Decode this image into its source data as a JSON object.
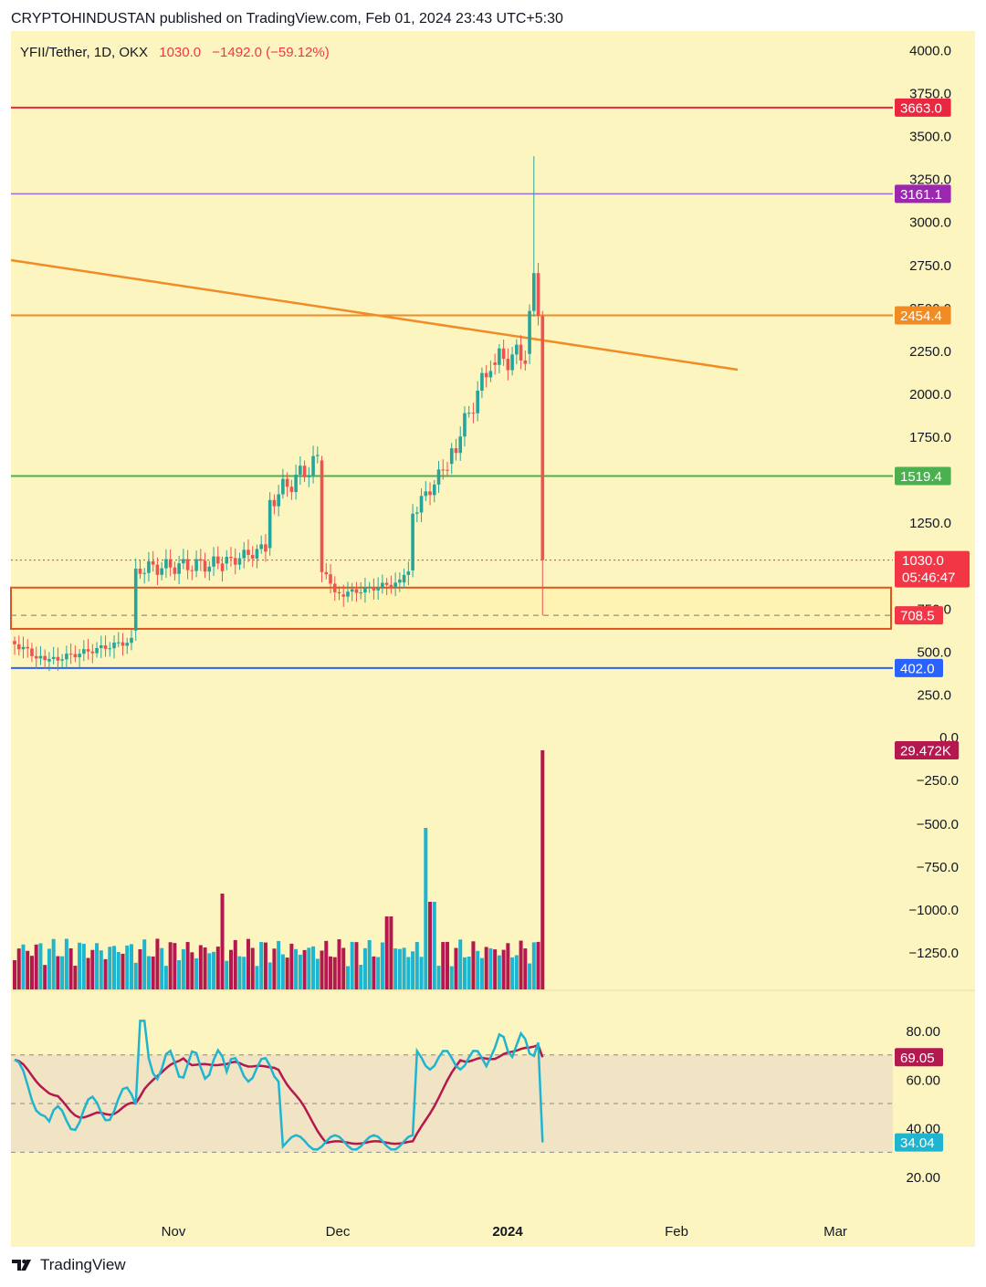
{
  "header": {
    "publisher": "CRYPTOHINDUSTAN published on TradingView.com, Feb 01, 2024 23:43 UTC+5:30"
  },
  "footer": {
    "brand": "TradingView",
    "logo_icon": "tradingview-logo-icon"
  },
  "symbol": {
    "name": "YFII/Tether, 1D, OKX",
    "price": "1030.0",
    "change": "−1492.0 (−59.12%)"
  },
  "colors": {
    "background": "#fcf5c0",
    "up": "#26a69a",
    "down": "#ef5350",
    "rsi_line": "#1fb4cf",
    "rsi_ma": "#b5174f",
    "trend": "#f08c25"
  },
  "chart_data": [
    {
      "type": "candlestick",
      "title": "YFII/Tether, 1D, OKX",
      "x_ticks": [
        "Nov",
        "Dec",
        "2024",
        "Feb",
        "Mar"
      ],
      "y_ticks": [
        "4000.0",
        "3750.0",
        "3500.0",
        "3250.0",
        "3000.0",
        "2750.0",
        "2500.0",
        "2250.0",
        "2000.0",
        "1750.0",
        "1500.0",
        "1250.0",
        "1000.0",
        "750.0",
        "500.0",
        "250.0"
      ],
      "ylim": [
        250,
        4000
      ],
      "price_labels": [
        {
          "value": 3663.0,
          "text": "3663.0",
          "color": "#e9283f"
        },
        {
          "value": 3161.1,
          "text": "3161.1",
          "color": "#9c27b0"
        },
        {
          "value": 2454.4,
          "text": "2454.4",
          "color": "#f08c25"
        },
        {
          "value": 1519.4,
          "text": "1519.4",
          "color": "#4caf50"
        },
        {
          "value": 1030.0,
          "text": "1030.0",
          "countdown": "05:46:47",
          "color": "#f23645"
        },
        {
          "value": 708.5,
          "text": "708.5",
          "color": "#f23645"
        },
        {
          "value": 402.0,
          "text": "402.0",
          "color": "#2962ff"
        }
      ],
      "annotations": [
        "horizontal line 3663.0",
        "horizontal line 3161.1",
        "horizontal line 2454.4",
        "horizontal line 1519.4",
        "horizontal line 402.0",
        "descending trendline",
        "support zone rectangle 630-870"
      ]
    },
    {
      "type": "bar",
      "title": "Volume",
      "last_label": "29.472K",
      "y_ticks": [
        "0.0",
        "−250.0",
        "−500.0",
        "−750.0",
        "−1000.0",
        "−1250.0"
      ]
    },
    {
      "type": "line",
      "title": "RSI",
      "y_ticks": [
        "80.00",
        "60.00",
        "40.00",
        "20.00"
      ],
      "ylim": [
        10,
        90
      ],
      "levels": [
        70,
        50,
        30
      ],
      "series": [
        {
          "label": "69.05",
          "value": 69.05
        },
        {
          "label": "34.04",
          "value": 34.04
        }
      ]
    }
  ]
}
